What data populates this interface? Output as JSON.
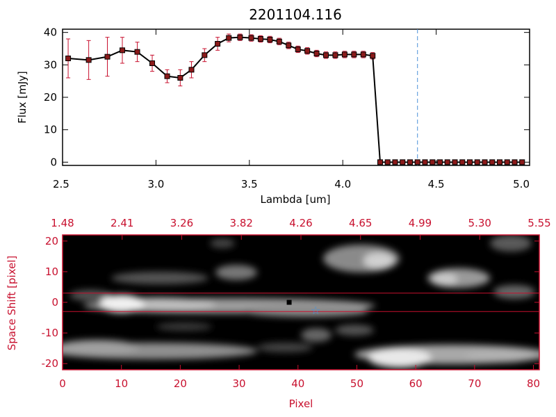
{
  "colors": {
    "accent": "#c8102e",
    "marker": "#8b1a1a",
    "guide": "#4a90d9",
    "line": "#000000"
  },
  "chart_data": [
    {
      "type": "line",
      "title": "2201104.116",
      "xlabel": "Lambda [um]",
      "ylabel": "Flux [mJy]",
      "xlim": [
        2.5,
        5.0
      ],
      "ylim": [
        -1,
        41
      ],
      "x_ticks": [
        "2.5",
        "3.0",
        "3.5",
        "4.0",
        "4.5",
        "5.0"
      ],
      "y_ticks": [
        "0",
        "10",
        "20",
        "30",
        "40"
      ],
      "grid": false,
      "reference_line_x": 4.4,
      "series": [
        {
          "x": [
            2.53,
            2.64,
            2.74,
            2.82,
            2.9,
            2.98,
            3.06,
            3.13,
            3.19,
            3.26,
            3.33,
            3.39,
            3.45,
            3.51,
            3.56,
            3.61,
            3.66,
            3.71,
            3.76,
            3.81,
            3.86,
            3.91,
            3.96,
            4.01,
            4.06,
            4.11,
            4.16,
            4.2,
            4.24,
            4.28,
            4.32,
            4.36,
            4.4,
            4.44,
            4.48,
            4.52,
            4.56,
            4.6,
            4.64,
            4.68,
            4.72,
            4.76,
            4.8,
            4.84,
            4.88,
            4.92,
            4.96
          ],
          "y": [
            32,
            31.5,
            32.5,
            34.5,
            34,
            30.5,
            26.5,
            26,
            28.5,
            33,
            36.5,
            38.3,
            38.5,
            38.3,
            38,
            37.8,
            37.2,
            36,
            34.8,
            34.3,
            33.5,
            33,
            33,
            33.2,
            33.2,
            33.2,
            32.8,
            0,
            0,
            0,
            0,
            0,
            0,
            0,
            0,
            0,
            0,
            0,
            0,
            0,
            0,
            0,
            0,
            0,
            0,
            0,
            0
          ],
          "yerr": [
            6,
            6,
            6,
            4,
            3,
            2.5,
            2,
            2.5,
            2.5,
            2,
            2,
            1.2,
            1,
            1,
            1,
            1,
            1,
            1,
            1,
            1,
            1,
            1,
            1,
            1,
            1,
            1,
            1,
            0,
            0,
            0,
            0,
            0,
            0,
            0,
            0,
            0,
            0,
            0,
            0,
            0,
            0,
            0,
            0,
            0,
            0,
            0,
            0
          ]
        }
      ]
    },
    {
      "type": "heatmap",
      "xlabel": "Pixel",
      "ylabel": "Space Shift [pixel]",
      "xlim": [
        0,
        81
      ],
      "ylim": [
        -22,
        22
      ],
      "x_ticks": [
        "0",
        "10",
        "20",
        "30",
        "40",
        "50",
        "60",
        "70",
        "80"
      ],
      "y_ticks": [
        "-20",
        "-10",
        "0",
        "10",
        "20"
      ],
      "top_ticks": [
        "1.48",
        "2.41",
        "3.26",
        "3.82",
        "4.26",
        "4.65",
        "4.99",
        "5.30",
        "5.55"
      ],
      "extraction_band": [
        -3,
        3
      ],
      "marker_pixel": [
        38.5,
        0
      ],
      "star_pixel": [
        43,
        -2.5
      ]
    }
  ]
}
